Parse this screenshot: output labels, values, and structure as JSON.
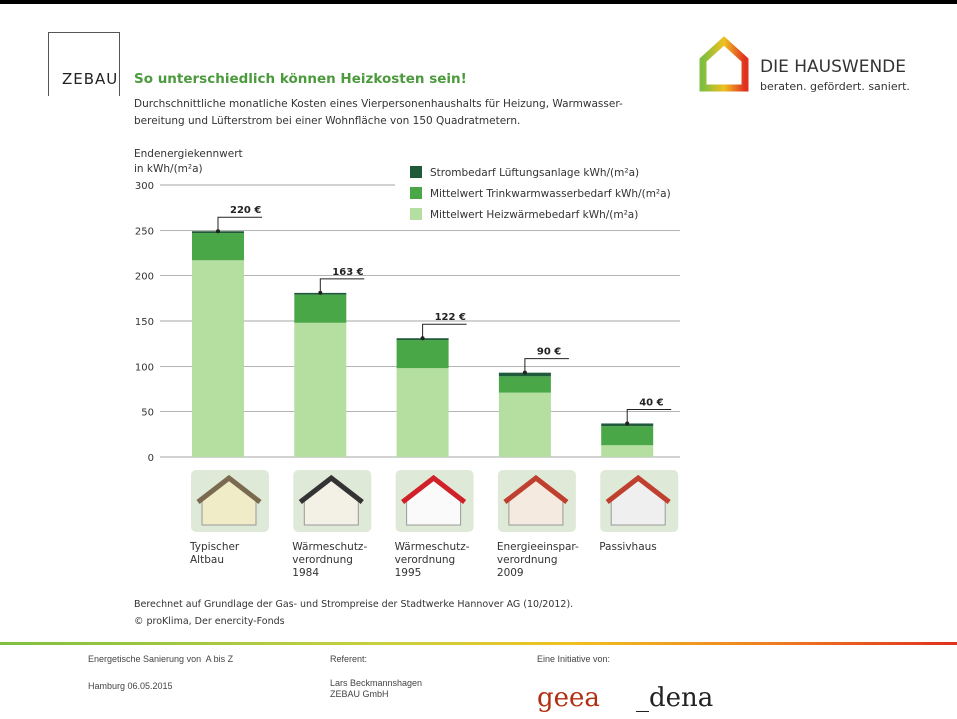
{
  "logo_left": "ZEBAU",
  "logo_right": {
    "name": "DIE HAUSWENDE",
    "tagline": "beraten. gefördert. saniert."
  },
  "chart_data": {
    "type": "stacked-bar",
    "title": "So unterschiedlich können Heizkosten sein!",
    "subtitle": [
      "Durchschnittliche monatliche Kosten eines Vierpersonenhaushalts für Heizung, Warmwasser-",
      "bereitung und Lüfterstrom bei einer Wohnfläche von 150 Quadratmetern."
    ],
    "y_label": [
      "Endenergiekennwert",
      "in kWh/(m²a)"
    ],
    "categories": [
      "Typischer\nAltbau",
      "Wärmeschutz-\nverordnung\n1984",
      "Wärmeschutz-\nverordnung\n1995",
      "Energieeinspar-\nverordnung\n2009",
      "Passivhaus"
    ],
    "series": [
      {
        "name": "Mittelwert Heizwärmebedarf kWh/(m²a)",
        "color": "#b5dfa0",
        "values": [
          217,
          148,
          98,
          71,
          13
        ]
      },
      {
        "name": "Mittelwert Trinkwarmwasserbedarf kWh/(m²a)",
        "color": "#4aa748",
        "values": [
          30,
          31,
          31,
          18,
          21
        ]
      },
      {
        "name": "Strombedarf Lüftungsanlage kWh/(m²a)",
        "color": "#1f5b3a",
        "values": [
          2,
          2,
          2,
          4,
          3
        ]
      }
    ],
    "cost_labels": [
      "220 €",
      "163 €",
      "122 €",
      "90 €",
      "40 €"
    ],
    "ylim": [
      0,
      300
    ],
    "yticks": [
      0,
      50,
      100,
      150,
      200,
      250,
      300
    ],
    "grid": true
  },
  "source": [
    "Berechnet auf Grundlage der Gas- und Strompreise der Stadtwerke Hannover AG (10/2012).",
    "© proKlima, Der enercity-Fonds"
  ],
  "footer": {
    "event": "Energetische Sanierung von  A bis Z",
    "date": "Hamburg 06.05.2015",
    "referent_label": "Referent:",
    "referent": [
      "Lars Beckmannshagen",
      "ZEBAU GmbH"
    ],
    "initiative_label": "Eine Initiative von:",
    "partners": [
      "geea",
      "_dena"
    ]
  }
}
